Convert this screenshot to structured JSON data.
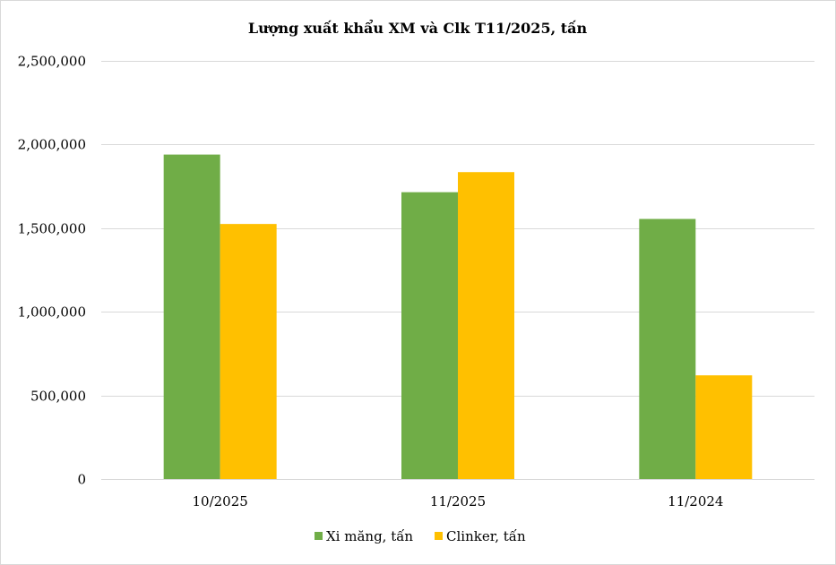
{
  "chart_data": {
    "type": "bar",
    "title": "Lượng xuất khẩu XM và Clk  T11/2025, tấn",
    "xlabel": "",
    "ylabel": "",
    "categories": [
      "10/2025",
      "11/2025",
      "11/2024"
    ],
    "series": [
      {
        "name": "Xi măng, tấn",
        "color": "#70AD47",
        "values": [
          1940000,
          1715000,
          1555000
        ]
      },
      {
        "name": "Clinker, tấn",
        "color": "#FFC000",
        "values": [
          1525000,
          1835000,
          620000
        ]
      }
    ],
    "ylim": [
      0,
      2500000
    ],
    "yticks": [
      0,
      500000,
      1000000,
      1500000,
      2000000,
      2500000
    ],
    "ytick_labels": [
      "0",
      "500,000",
      "1,000,000",
      "1,500,000",
      "2,000,000",
      "2,500,000"
    ],
    "grid": true,
    "legend_position": "bottom",
    "gridline_color": "#D9D9D9"
  }
}
